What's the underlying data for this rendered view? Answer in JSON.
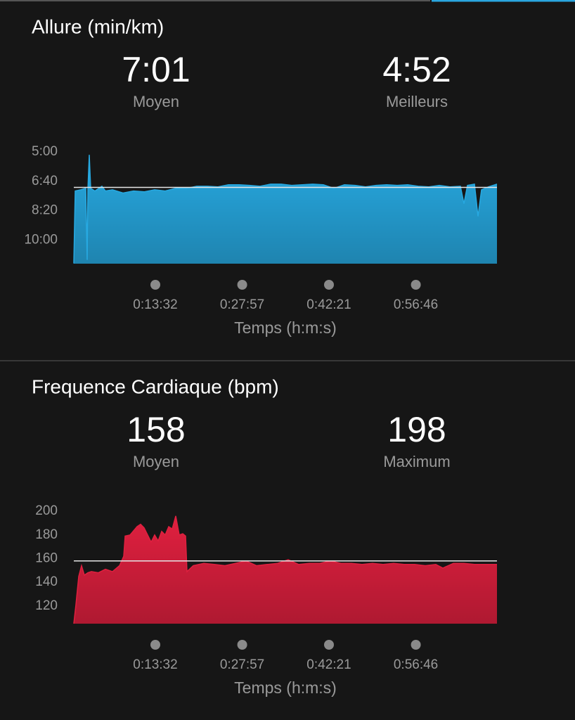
{
  "chart_data": [
    {
      "type": "area",
      "title": "Allure (min/km)",
      "stats": [
        {
          "name": "Moyen",
          "value": {
            "value": 421,
            "label": "7:01"
          }
        },
        {
          "name": "Meilleurs",
          "value": {
            "value": 292,
            "label": "4:52"
          }
        }
      ],
      "x_label": "Temps (h:m:s)",
      "x": [
        0,
        14,
        70,
        119,
        133,
        140,
        154,
        168,
        210,
        280,
        315,
        385,
        490,
        595,
        700,
        805,
        910,
        1015,
        1120,
        1225,
        1330,
        1435,
        1540,
        1645,
        1750,
        1855,
        1960,
        2065,
        2170,
        2275,
        2380,
        2485,
        2590,
        2695,
        2800,
        2905,
        3010,
        3115,
        3220,
        3325,
        3430,
        3535,
        3640,
        3745,
        3850,
        3885,
        3920,
        3990,
        4025,
        4060,
        4130,
        4214
      ],
      "values": [
        679,
        433,
        429,
        424,
        667,
        429,
        310,
        424,
        433,
        417,
        433,
        429,
        440,
        433,
        436,
        429,
        433,
        424,
        424,
        417,
        417,
        419,
        412,
        412,
        414,
        417,
        410,
        410,
        414,
        412,
        410,
        412,
        424,
        412,
        414,
        419,
        414,
        412,
        414,
        412,
        417,
        419,
        414,
        419,
        417,
        476,
        414,
        410,
        519,
        429,
        419,
        410
      ],
      "color": "#27a9e1",
      "xlim": [
        0,
        4214
      ],
      "xticks": [
        {
          "value": 812,
          "label": "0:13:32"
        },
        {
          "value": 1677,
          "label": "0:27:57"
        },
        {
          "value": 2541,
          "label": "0:42:21"
        },
        {
          "value": 3406,
          "label": "0:56:46"
        }
      ],
      "ylim": [
        680,
        286
      ],
      "yticks": [
        {
          "value": 300,
          "label": "5:00"
        },
        {
          "value": 400,
          "label": "6:40"
        },
        {
          "value": 500,
          "label": "8:20"
        },
        {
          "value": 600,
          "label": "10:00"
        }
      ]
    },
    {
      "type": "area",
      "title": "Frequence Cardiaque (bpm)",
      "stats": [
        {
          "name": "Moyen",
          "value": 158
        },
        {
          "name": "Maximum",
          "value": 198
        }
      ],
      "x_label": "Temps (h:m:s)",
      "x": [
        0,
        21,
        49,
        77,
        105,
        140,
        175,
        245,
        315,
        385,
        455,
        497,
        511,
        560,
        630,
        665,
        700,
        735,
        770,
        805,
        840,
        875,
        910,
        945,
        980,
        1015,
        1050,
        1085,
        1113,
        1127,
        1190,
        1295,
        1400,
        1505,
        1610,
        1715,
        1820,
        1925,
        2030,
        2135,
        2240,
        2345,
        2450,
        2555,
        2660,
        2765,
        2870,
        2975,
        3080,
        3185,
        3290,
        3395,
        3500,
        3605,
        3675,
        3780,
        3885,
        3990,
        4095,
        4214
      ],
      "values": [
        105,
        121,
        145,
        154,
        146,
        148,
        149,
        148,
        151,
        149,
        154,
        162,
        179,
        180,
        187,
        189,
        186,
        180,
        174,
        180,
        175,
        183,
        180,
        187,
        185,
        196,
        180,
        181,
        179,
        149,
        154,
        156,
        155,
        154,
        156,
        158,
        154,
        155,
        156,
        159,
        155,
        156,
        156,
        158,
        156,
        156,
        155,
        156,
        155,
        156,
        155,
        155,
        154,
        155,
        152,
        156,
        156,
        155,
        155,
        155
      ],
      "color": "#e0203f",
      "xlim": [
        0,
        4214
      ],
      "xticks": [
        {
          "value": 812,
          "label": "0:13:32"
        },
        {
          "value": 1677,
          "label": "0:27:57"
        },
        {
          "value": 2541,
          "label": "0:42:21"
        },
        {
          "value": 3406,
          "label": "0:56:46"
        }
      ],
      "ylim": [
        105,
        206
      ],
      "yticks": [
        120,
        140,
        160,
        180,
        200
      ]
    }
  ]
}
